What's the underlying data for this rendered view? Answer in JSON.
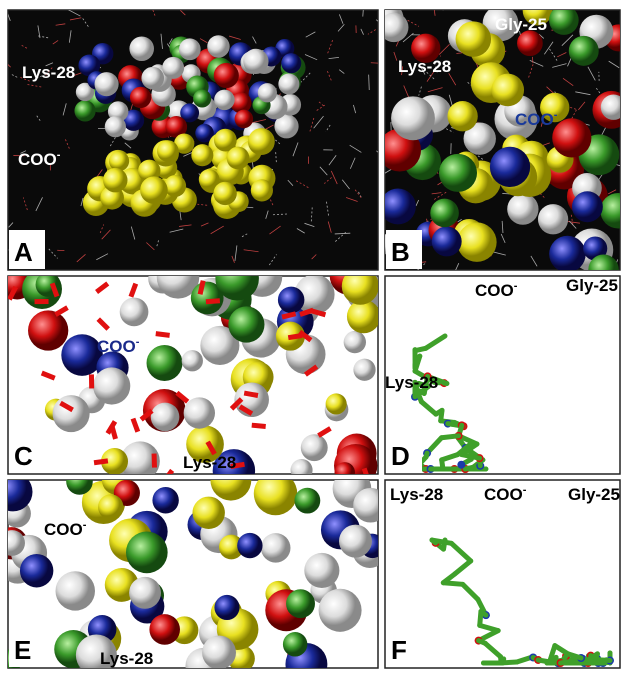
{
  "panels": [
    {
      "letter": "A",
      "labels": [
        {
          "text": "Lys-28"
        },
        {
          "text": "COO",
          "superscript": "-"
        }
      ]
    },
    {
      "letter": "B",
      "labels": [
        {
          "text": "Gly-25"
        },
        {
          "text": "Lys-28"
        },
        {
          "text": "COO",
          "superscript": "-"
        }
      ]
    },
    {
      "letter": "C",
      "labels": [
        {
          "text": "COO",
          "superscript": "-"
        },
        {
          "text": "Lys-28"
        }
      ]
    },
    {
      "letter": "D",
      "labels": [
        {
          "text": "COO",
          "superscript": "-"
        },
        {
          "text": "Gly-25"
        },
        {
          "text": "Lys-28"
        }
      ]
    },
    {
      "letter": "E",
      "labels": [
        {
          "text": "COO",
          "superscript": "-"
        },
        {
          "text": "Lys-28"
        }
      ]
    },
    {
      "letter": "F",
      "labels": [
        {
          "text": "Lys-28"
        },
        {
          "text": "COO",
          "superscript": "-"
        },
        {
          "text": "Gly-25"
        }
      ]
    }
  ]
}
